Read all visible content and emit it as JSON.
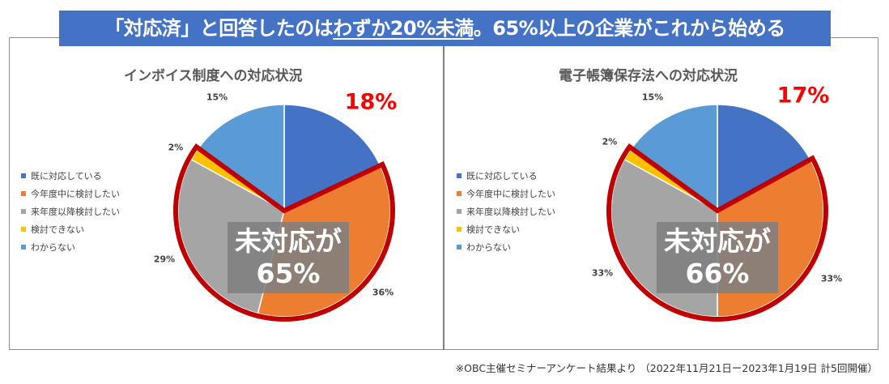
{
  "banner": {
    "part1": "「対応済」と回答したのは",
    "underlined": "わずか20%未満",
    "part2": "。65%以上の企業がこれから始める"
  },
  "colors": {
    "banner": "#4472c4",
    "outline": "#c00000",
    "highlight": "#ff0000"
  },
  "chart_data": [
    {
      "type": "pie",
      "title": "インボイス制度への対応状況",
      "categories": [
        "既に対応している",
        "今年度中に検討したい",
        "来年度以降検討したい",
        "検討できない",
        "わからない"
      ],
      "values": [
        18,
        36,
        29,
        2,
        15
      ],
      "labels": [
        "18%",
        "36%",
        "29%",
        "2%",
        "15%"
      ],
      "colors": [
        "#4472c4",
        "#ed7d31",
        "#a5a5a5",
        "#ffc000",
        "#5b9bd5"
      ],
      "legend_position": "left",
      "highlight_label": "18%",
      "callout_line1": "未対応が",
      "callout_line2": "65%"
    },
    {
      "type": "pie",
      "title": "電子帳簿保存法への対応状況",
      "categories": [
        "既に対応している",
        "今年度中に検討したい",
        "来年度以降検討したい",
        "検討できない",
        "わからない"
      ],
      "values": [
        17,
        33,
        33,
        2,
        15
      ],
      "labels": [
        "17%",
        "33%",
        "33%",
        "2%",
        "15%"
      ],
      "colors": [
        "#4472c4",
        "#ed7d31",
        "#a5a5a5",
        "#ffc000",
        "#5b9bd5"
      ],
      "legend_position": "left",
      "highlight_label": "17%",
      "callout_line1": "未対応が",
      "callout_line2": "66%"
    }
  ],
  "footer": "※OBC主催セミナーアンケート結果より （2022年11月21日ー2023年1月19日 計5回開催）"
}
